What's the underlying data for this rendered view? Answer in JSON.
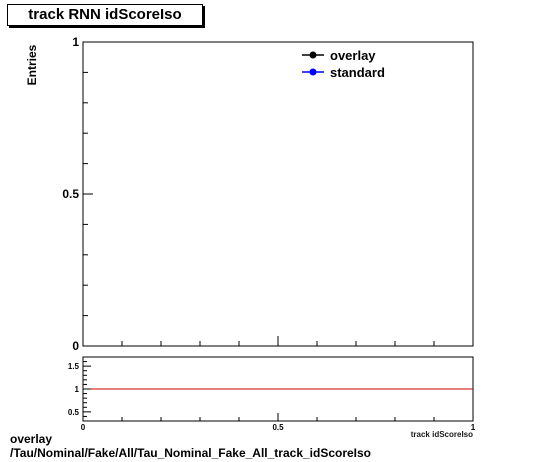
{
  "chart_data": [
    {
      "type": "line",
      "title": "track RNN idScoreIso",
      "ylabel": "Entries",
      "xlabel": "",
      "xlim": [
        0,
        1
      ],
      "ylim": [
        0,
        1
      ],
      "y_tick_labels": [
        "0",
        "0.5",
        "1"
      ],
      "legend_position": "top-right",
      "series": [
        {
          "name": "overlay",
          "color": "#000000",
          "x": [],
          "y": []
        },
        {
          "name": "standard",
          "color": "#0000ff",
          "x": [],
          "y": []
        }
      ]
    },
    {
      "type": "line",
      "xlabel": "track idScoreIso",
      "xlim": [
        0,
        1
      ],
      "ylim": [
        0.3,
        1.7
      ],
      "x_tick_labels": [
        "0",
        "0.5",
        "1"
      ],
      "y_tick_labels": [
        "0.5",
        "1",
        "1.5"
      ],
      "reference_line": {
        "y": 1,
        "color": "#cc0000"
      }
    }
  ],
  "footer": {
    "line1": "overlay",
    "line2": "/Tau/Nominal/Fake/All/Tau_Nominal_Fake_All_track_idScoreIso"
  }
}
